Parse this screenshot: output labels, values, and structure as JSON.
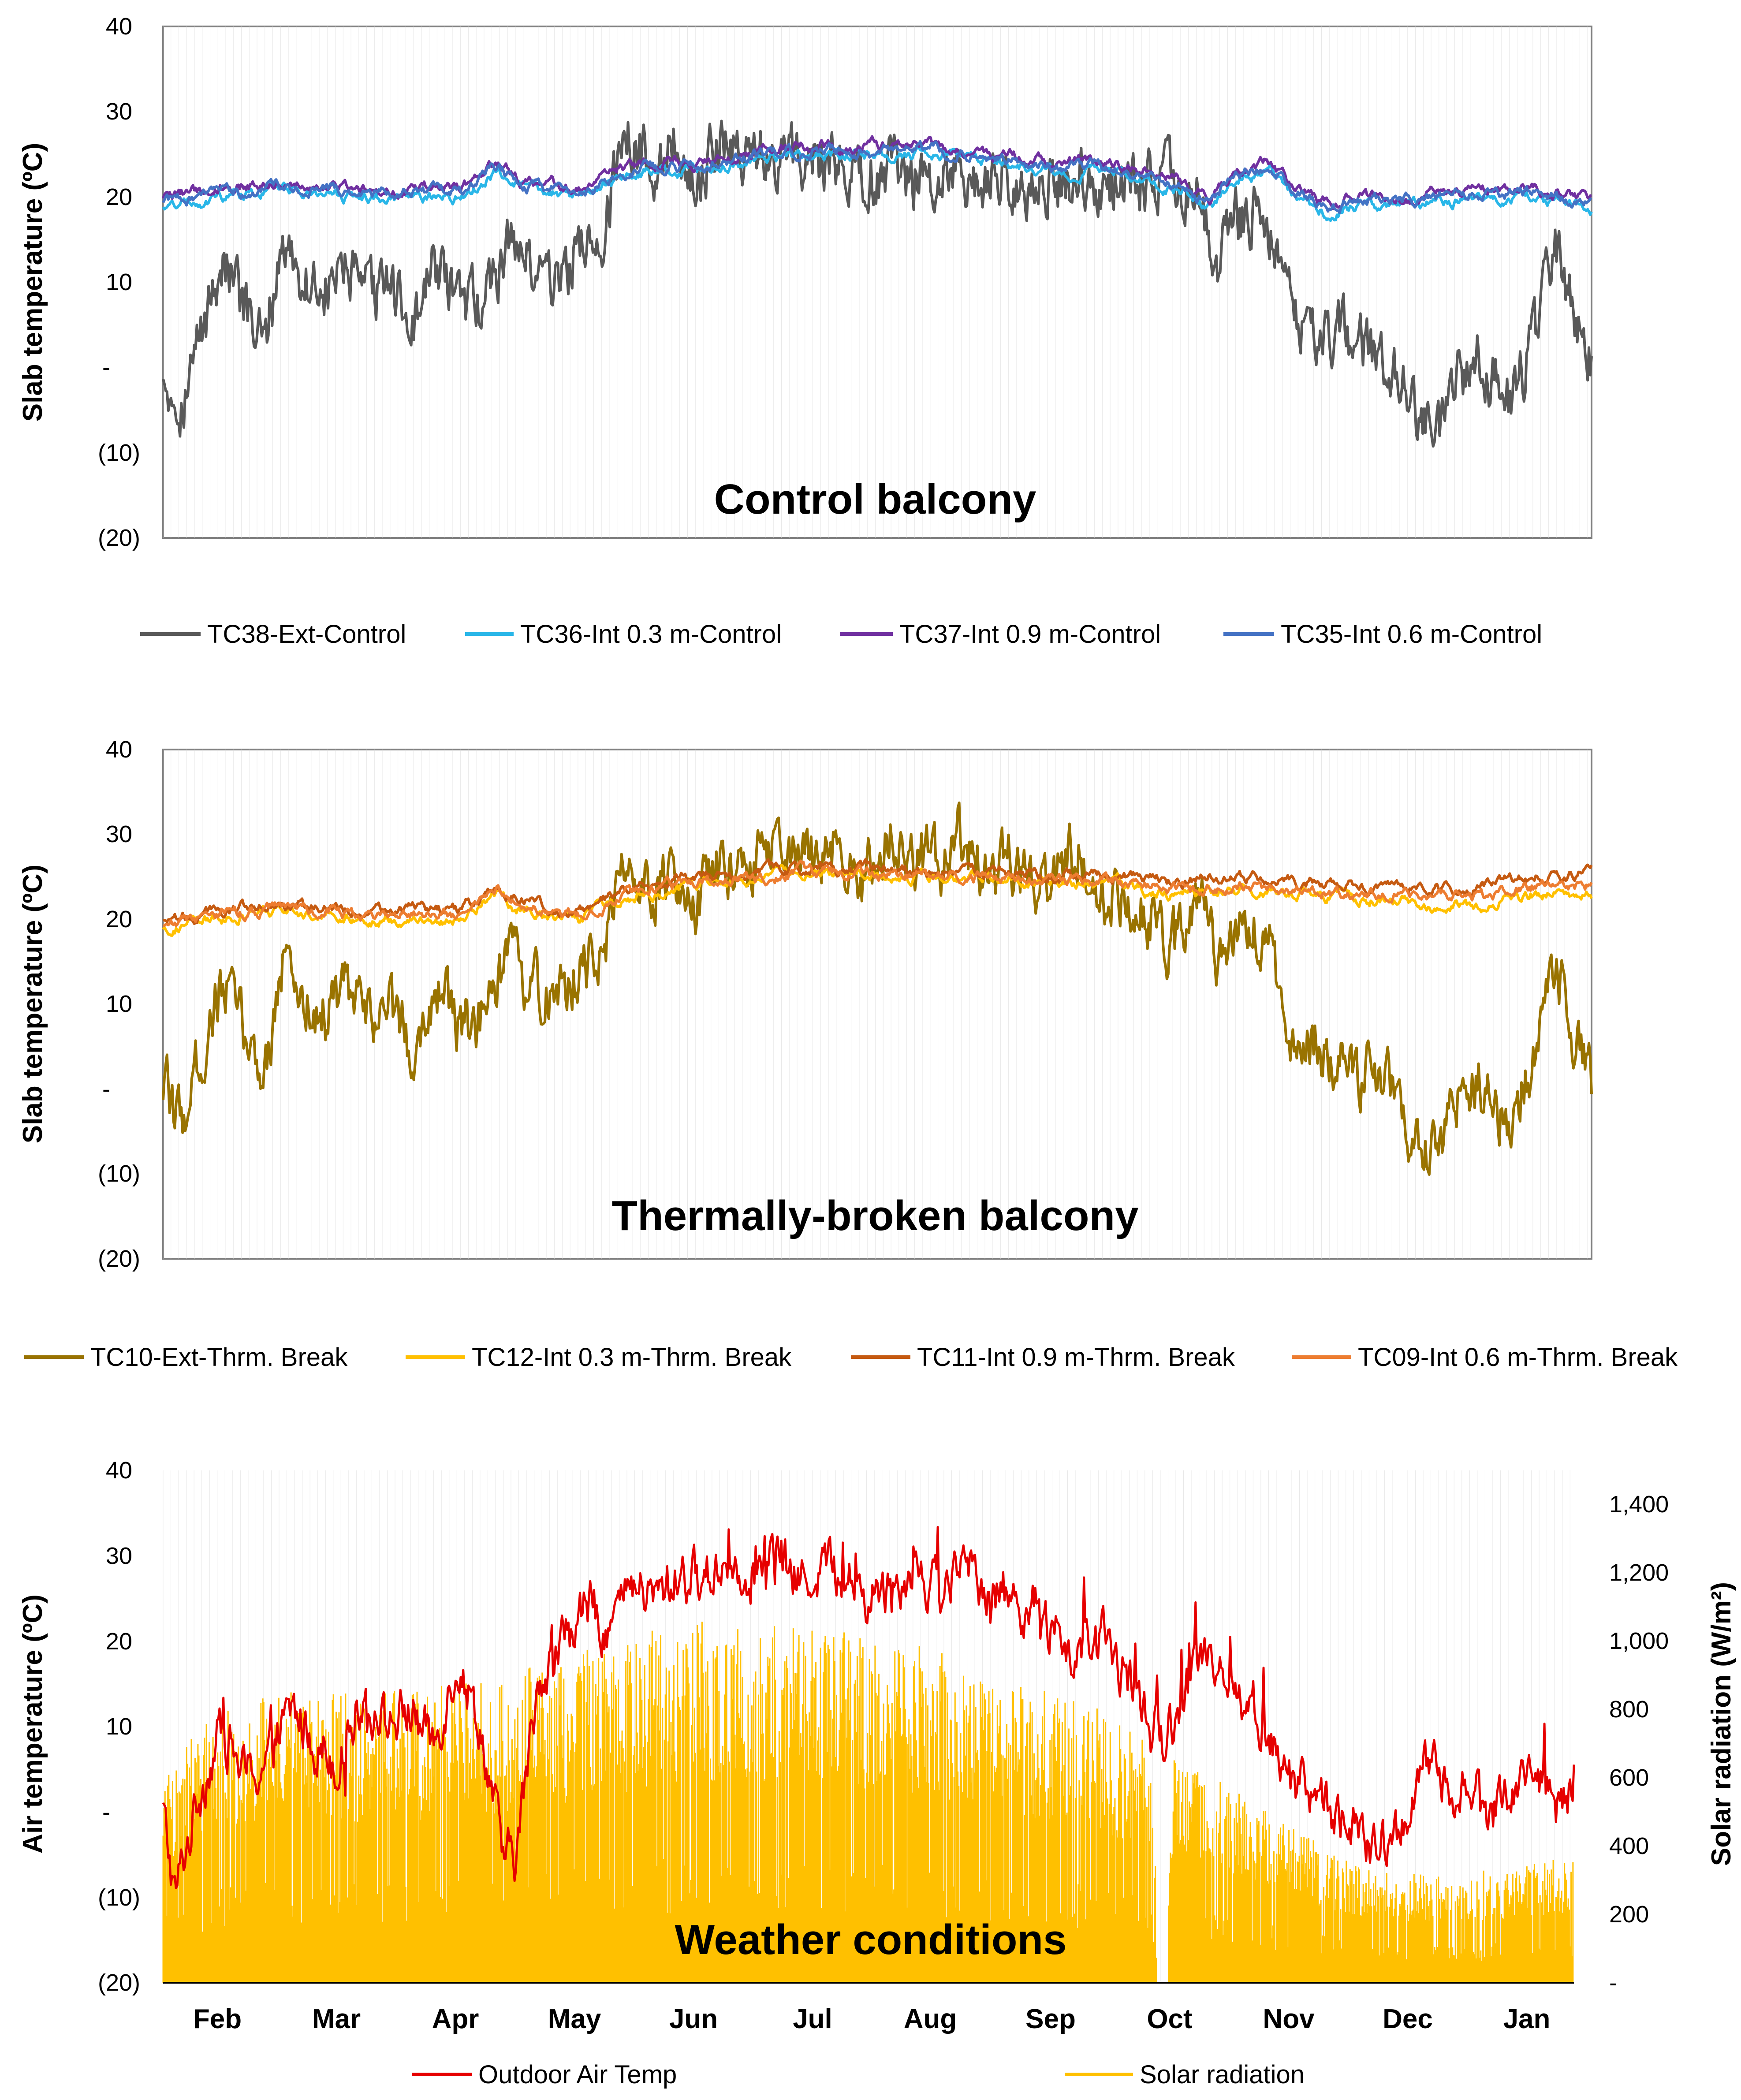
{
  "colors": {
    "TC38": "#595959",
    "TC36": "#29b6e8",
    "TC37": "#7030a0",
    "TC35": "#4472c4",
    "TC10": "#997300",
    "TC12": "#ffc000",
    "TC11": "#c55a11",
    "TC09": "#ed7d31",
    "air": "#e60000",
    "solar": "#ffc000"
  },
  "chart_data": [
    {
      "type": "line",
      "title": "Control balcony",
      "ylabel": "Slab temperature (ºC)",
      "ylim": [
        -20,
        40
      ],
      "y_ticks": [
        "40",
        "30",
        "20",
        "10",
        "-",
        "(10)",
        "(20)"
      ],
      "x_range_months": [
        0,
        12
      ],
      "series": [
        {
          "name": "TC38-Ext-Control",
          "color_key": "TC38",
          "style": "exterior",
          "x": [
            0,
            0.15,
            0.3,
            0.5,
            0.7,
            0.85,
            1.0,
            1.2,
            1.4,
            1.5,
            1.7,
            1.9,
            2.1,
            2.3,
            2.5,
            2.7,
            2.9,
            3.1,
            3.3,
            3.5,
            3.7,
            3.9,
            4.1,
            4.3,
            4.5,
            4.7,
            4.9,
            5.0,
            6.0,
            7.0,
            8.0,
            8.7,
            8.85,
            9.0,
            9.2,
            9.4,
            9.5,
            9.7,
            10.0,
            10.3,
            10.5,
            10.7,
            11.0,
            11.3,
            11.5,
            11.7,
            12.0
          ],
          "y": [
            0,
            -4,
            3,
            13,
            6,
            2,
            15,
            10,
            9,
            12,
            8,
            10,
            5,
            12,
            7,
            8,
            15,
            12,
            10,
            14,
            16,
            28,
            24,
            26,
            22,
            27,
            25,
            26,
            22.5,
            22,
            22,
            21,
            12,
            17,
            18,
            11,
            5,
            5,
            3,
            0,
            -5,
            -8,
            2,
            -4,
            2,
            14,
            0
          ]
        },
        {
          "name": "TC36-Int 0.3 m-Control",
          "color_key": "TC36",
          "style": "interior",
          "x": [
            0,
            0.5,
            1.0,
            1.5,
            2.0,
            2.5,
            2.8,
            3.0,
            3.5,
            4.0,
            4.5,
            5.0,
            5.5,
            6.0,
            6.5,
            7.0,
            7.5,
            8.0,
            8.5,
            8.8,
            9.0,
            9.3,
            9.5,
            9.8,
            10.0,
            10.5,
            11.0,
            11.5,
            12.0
          ],
          "y": [
            19,
            20,
            21,
            20,
            20,
            20,
            23,
            21,
            20,
            23,
            23,
            24.5,
            25,
            25,
            25,
            24,
            23,
            23,
            21,
            19,
            22,
            23,
            20,
            18,
            19,
            19,
            20,
            20,
            18.5
          ]
        },
        {
          "name": "TC37-Int 0.9 m-Control",
          "color_key": "TC37",
          "style": "interior",
          "x": [
            0,
            0.5,
            1.0,
            1.5,
            2.0,
            2.5,
            2.8,
            3.0,
            3.5,
            4.0,
            4.5,
            5.0,
            5.5,
            6.0,
            6.5,
            7.0,
            7.5,
            8.0,
            8.5,
            8.8,
            9.0,
            9.3,
            9.5,
            9.8,
            10.0,
            10.5,
            11.0,
            11.5,
            12.0
          ],
          "y": [
            20,
            21,
            22,
            21,
            21,
            21,
            24,
            22,
            21,
            24,
            24,
            25.5,
            26,
            26,
            26,
            25,
            24,
            24,
            22,
            20,
            23,
            24,
            21,
            19,
            20,
            20,
            21,
            21,
            19.5
          ]
        },
        {
          "name": "TC35-Int 0.6 m-Control",
          "color_key": "TC35",
          "style": "interior",
          "x": [
            0,
            0.5,
            1.0,
            1.5,
            2.0,
            2.5,
            2.8,
            3.0,
            3.5,
            4.0,
            4.5,
            5.0,
            5.5,
            6.0,
            6.5,
            7.0,
            7.5,
            8.0,
            8.5,
            8.8,
            9.0,
            9.3,
            9.5,
            9.8,
            10.0,
            10.5,
            11.0,
            11.5,
            12.0
          ],
          "y": [
            19.5,
            20.5,
            21.5,
            20.5,
            20.5,
            20.5,
            23.5,
            21.5,
            20.5,
            23.5,
            23.5,
            25,
            25.5,
            25.5,
            25.5,
            24.5,
            23.5,
            23.5,
            21.5,
            19.5,
            22.5,
            23.5,
            20.5,
            18.5,
            19.5,
            19.5,
            20.5,
            20.5,
            19
          ]
        }
      ]
    },
    {
      "type": "line",
      "title": "Thermally-broken balcony",
      "ylabel": "Slab temperature (ºC)",
      "ylim": [
        -20,
        40
      ],
      "y_ticks": [
        "40",
        "30",
        "20",
        "10",
        "-",
        "(10)",
        "(20)"
      ],
      "x_range_months": [
        0,
        12
      ],
      "series": [
        {
          "name": "TC10-Ext-Thrm. Break",
          "color_key": "TC10",
          "style": "exterior",
          "x": [
            0,
            0.15,
            0.3,
            0.5,
            0.7,
            0.85,
            1.0,
            1.2,
            1.4,
            1.5,
            1.7,
            1.9,
            2.1,
            2.3,
            2.5,
            2.7,
            2.9,
            3.1,
            3.3,
            3.5,
            3.7,
            3.9,
            4.1,
            4.3,
            4.5,
            4.7,
            4.9,
            5.1,
            5.3,
            5.5,
            5.7,
            5.9,
            6.1,
            6.3,
            6.5,
            6.7,
            6.9,
            7.1,
            7.3,
            7.5,
            7.7,
            7.9,
            8.1,
            8.3,
            8.5,
            8.7,
            8.85,
            9.0,
            9.2,
            9.4,
            9.5,
            9.7,
            10.0,
            10.3,
            10.5,
            10.7,
            11.0,
            11.3,
            11.5,
            11.7,
            12.0
          ],
          "y": [
            0,
            -4,
            3,
            13,
            6,
            2,
            15,
            10,
            9,
            12,
            8,
            10,
            5,
            12,
            7,
            8,
            15,
            12,
            10,
            14,
            16,
            28,
            24,
            26,
            22,
            27,
            25,
            28,
            26,
            27,
            29,
            25,
            30,
            28,
            26,
            30,
            25,
            27,
            24,
            26,
            28,
            22,
            24,
            20,
            17,
            22,
            16,
            19,
            20,
            12,
            5,
            5,
            3,
            0,
            -5,
            -8,
            2,
            -4,
            2,
            14,
            0
          ]
        },
        {
          "name": "TC12-Int 0.3 m-Thrm. Break",
          "color_key": "TC12",
          "style": "interior",
          "x": [
            0,
            0.5,
            1.0,
            1.5,
            2.0,
            2.5,
            2.8,
            3.0,
            3.5,
            4.0,
            4.5,
            5.0,
            5.5,
            6.0,
            6.5,
            7.0,
            7.5,
            8.0,
            8.5,
            9.0,
            9.5,
            10.0,
            10.5,
            11.0,
            11.5,
            12.0
          ],
          "y": [
            19,
            20,
            21,
            20,
            20,
            20,
            23,
            21,
            20,
            23,
            24,
            25,
            25.5,
            25.5,
            25,
            25,
            24,
            24,
            23,
            23.5,
            23,
            22.5,
            22,
            21.5,
            23,
            23
          ]
        },
        {
          "name": "TC11-Int 0.9 m-Thrm. Break",
          "color_key": "TC11",
          "style": "interior",
          "x": [
            0,
            0.5,
            1.0,
            1.5,
            2.0,
            2.5,
            2.8,
            3.0,
            3.5,
            4.0,
            4.5,
            5.0,
            5.5,
            6.0,
            6.5,
            7.0,
            7.5,
            8.0,
            8.5,
            9.0,
            9.5,
            10.0,
            10.5,
            11.0,
            11.5,
            12.0
          ],
          "y": [
            20,
            21,
            22,
            21,
            21,
            21,
            24,
            22,
            21,
            24,
            25,
            25.5,
            26,
            26,
            25.5,
            25.5,
            25,
            25,
            24.5,
            25,
            24.5,
            24,
            24,
            23.5,
            25,
            25.5
          ]
        },
        {
          "name": "TC09-Int 0.6 m-Thrm. Break",
          "color_key": "TC09",
          "style": "interior",
          "x": [
            0,
            0.5,
            1.0,
            1.5,
            2.0,
            2.5,
            2.8,
            3.0,
            3.5,
            4.0,
            4.5,
            5.0,
            5.5,
            6.0,
            6.5,
            7.0,
            7.5,
            8.0,
            8.5,
            9.0,
            9.5,
            10.0,
            10.5,
            11.0,
            11.5,
            12.0
          ],
          "y": [
            19.5,
            20.5,
            21.5,
            20.5,
            20.5,
            20.5,
            23.5,
            21.5,
            20.5,
            23.5,
            24.5,
            25,
            25.5,
            25.5,
            25,
            25,
            24.5,
            24.5,
            23.5,
            24,
            23.5,
            23,
            23,
            22.5,
            24,
            24
          ]
        }
      ]
    },
    {
      "type": "line",
      "title": "Weather conditions",
      "ylabel": "Air temperature (ºC)",
      "y2label": "Solar radiation (W/m²)",
      "ylim": [
        -20,
        40
      ],
      "y2lim": [
        0,
        1400
      ],
      "y_ticks": [
        "40",
        "30",
        "20",
        "10",
        "-",
        "(10)",
        "(20)"
      ],
      "y2_ticks": [
        "1,400",
        "1,200",
        "1,000",
        "800",
        "600",
        "400",
        "200",
        "-"
      ],
      "categories": [
        "Feb",
        "Mar",
        "Apr",
        "May",
        "Jun",
        "Jul",
        "Aug",
        "Sep",
        "Oct",
        "Nov",
        "Dec",
        "Jan"
      ],
      "x_range_months": [
        0,
        12
      ],
      "series": [
        {
          "name": "Outdoor Air Temp",
          "color_key": "air",
          "axis": "left",
          "x": [
            0,
            0.1,
            0.3,
            0.5,
            0.7,
            0.9,
            1.1,
            1.3,
            1.5,
            1.7,
            1.9,
            2.1,
            2.3,
            2.5,
            2.7,
            2.9,
            3.0,
            3.2,
            3.4,
            3.6,
            3.8,
            4.0,
            4.2,
            4.4,
            4.6,
            4.8,
            5.0,
            5.2,
            5.4,
            5.6,
            5.8,
            6.0,
            6.2,
            6.4,
            6.6,
            6.8,
            7.0,
            7.2,
            7.4,
            7.6,
            7.8,
            8.0,
            8.2,
            8.4,
            8.5,
            8.7,
            8.9,
            9.1,
            9.3,
            9.5,
            9.7,
            10.0,
            10.3,
            10.5,
            10.7,
            11.0,
            11.3,
            11.5,
            11.7,
            11.9,
            12.0
          ],
          "y": [
            0,
            -10,
            2,
            10,
            4,
            6,
            12,
            8,
            6,
            14,
            10,
            12,
            8,
            18,
            10,
            -6,
            -5,
            16,
            20,
            24,
            22,
            26,
            25,
            28,
            27,
            30,
            28,
            30,
            27,
            29,
            28,
            25,
            27,
            29,
            26,
            28,
            27,
            25,
            24,
            20,
            18,
            20,
            16,
            10,
            8,
            15,
            20,
            14,
            12,
            5,
            3,
            0,
            -5,
            -3,
            5,
            3,
            0,
            3,
            5,
            -1,
            5
          ]
        },
        {
          "name": "Solar radiation",
          "color_key": "solar",
          "axis": "right",
          "x": [
            0,
            0.5,
            1.0,
            1.5,
            2.0,
            2.5,
            3.0,
            3.5,
            4.0,
            4.5,
            5.0,
            5.5,
            6.0,
            6.5,
            7.0,
            7.5,
            8.0,
            8.4,
            8.5,
            8.6,
            9.0,
            9.5,
            10.0,
            10.5,
            11.0,
            11.5,
            12.0
          ],
          "y": [
            600,
            750,
            800,
            800,
            800,
            820,
            850,
            900,
            950,
            1000,
            1000,
            980,
            950,
            920,
            850,
            800,
            750,
            650,
            0,
            620,
            550,
            450,
            350,
            300,
            300,
            320,
            350
          ]
        }
      ]
    }
  ]
}
